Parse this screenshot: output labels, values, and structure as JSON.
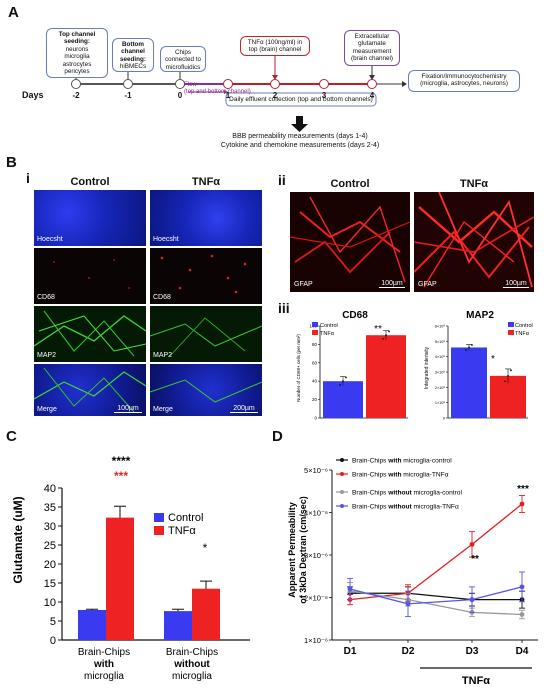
{
  "panel_a": {
    "letter": "A",
    "days_label": "Days",
    "day_ticks": [
      "-2",
      "-1",
      "0",
      "1",
      "2",
      "3",
      "4"
    ],
    "box_top_seeding": {
      "title": "Top channel seeding:",
      "lines": [
        "neurons",
        "microglia",
        "astrocytes",
        "pericytes"
      ]
    },
    "box_bottom_seeding": {
      "title": "Bottom channel seeding:",
      "lines": [
        "hiBMECs"
      ]
    },
    "box_chips": {
      "lines": [
        "Chips",
        "connected to",
        "microfluidics"
      ]
    },
    "box_tnf": {
      "lines": [
        "TNFα (100ng/ml) in",
        "top (brain) channel"
      ]
    },
    "box_glutamate": {
      "lines": [
        "Extracellular",
        "glutamate",
        "measurement",
        "(brain channel)"
      ]
    },
    "box_fixation": {
      "lines": [
        "Fixation/Immunocytochemistry",
        "(microglia, astrocytes, neurons)"
      ]
    },
    "flow_label": [
      "Flow",
      "(top and bottom channel)"
    ],
    "effluent_label": "Daily effluent collection (top and bottom channels)",
    "measurements": [
      "BBB permeability measurements (days 1-4)",
      "Cytokine and chemokine measurements (days 2-4)"
    ]
  },
  "panel_b": {
    "letter": "B",
    "sub_i": "i",
    "sub_ii": "ii",
    "sub_iii": "iii",
    "col_control": "Control",
    "col_tnf": "TNFα",
    "rows": [
      "Hoecsht",
      "CD68",
      "MAP2",
      "Merge"
    ],
    "scale_100": "100µm",
    "scale_200": "200µm",
    "gfap_label": "GFAP",
    "colors": {
      "hoechst": "#1a2ad8",
      "cd68": "#e02020",
      "map2": "#38d030",
      "gfap": "#f01818"
    }
  },
  "panel_biii_cd68": {
    "title": "CD68",
    "ylabel": "Number of CD68+ cells (per mm²)",
    "legend": [
      "Control",
      "TNFα"
    ],
    "significance": "**",
    "chart_data": {
      "type": "bar",
      "categories": [
        "Control",
        "TNFα"
      ],
      "values": [
        40,
        90
      ],
      "errors": [
        5,
        5
      ],
      "ylim": [
        0,
        100
      ],
      "colors": [
        "#3a3af0",
        "#ee2222"
      ],
      "yticks": [
        "0",
        "20",
        "40",
        "60",
        "80",
        "100"
      ]
    }
  },
  "panel_biii_map2": {
    "title": "MAP2",
    "ylabel": "Integrated intensity",
    "legend": [
      "Control",
      "TNFα"
    ],
    "significance": "*",
    "chart_data": {
      "type": "bar",
      "categories": [
        "Control",
        "TNFα"
      ],
      "values": [
        460000000.0,
        275000000.0
      ],
      "errors": [
        20000000.0,
        45000000.0
      ],
      "ylim": [
        0,
        600000000.0
      ],
      "colors": [
        "#3a3af0",
        "#ee2222"
      ],
      "yticks": [
        "0",
        "1×10⁸",
        "2×10⁸",
        "3×10⁸",
        "4×10⁸",
        "5×10⁸",
        "6×10⁸"
      ]
    }
  },
  "panel_c": {
    "letter": "C",
    "ylabel": "Glutamate (uM)",
    "legend": [
      "Control",
      "TNFα"
    ],
    "group1": [
      "Brain-Chips",
      "with",
      "microglia"
    ],
    "group2": [
      "Brain-Chips",
      "without",
      "microglia"
    ],
    "sig_black": "****",
    "sig_red": "***",
    "sig_small": "*",
    "chart_data": {
      "type": "bar",
      "categories": [
        "Brain-Chips with microglia",
        "Brain-Chips without microglia"
      ],
      "series": [
        {
          "name": "Control",
          "values": [
            7.9,
            7.6
          ],
          "errors": [
            0.2,
            0.5
          ]
        },
        {
          "name": "TNFα",
          "values": [
            32.2,
            13.5
          ],
          "errors": [
            3.0,
            2.0
          ]
        }
      ],
      "ylim": [
        0,
        40
      ],
      "yticks": [
        "0",
        "5",
        "10",
        "15",
        "20",
        "25",
        "30",
        "35",
        "40"
      ],
      "colors": [
        "#3a3af0",
        "#ee2222"
      ]
    }
  },
  "panel_d": {
    "letter": "D",
    "ylabel": [
      "Apparent Permeability",
      "of 3kDa Dextran (cm/sec)"
    ],
    "x_group_label": "TNFα",
    "sig_d3": "**",
    "sig_d4": "***",
    "legend": [
      {
        "prefix": "Brain-Chips ",
        "bold": "with",
        "suffix": " microglia-control"
      },
      {
        "prefix": "Brain-Chips ",
        "bold": "with",
        "suffix": " microglia-TNFα"
      },
      {
        "prefix": "Brain-Chips ",
        "bold": "without",
        "suffix": " microglia-control"
      },
      {
        "prefix": "Brain-Chips ",
        "bold": "without",
        "suffix": " microglia-TNFα"
      }
    ],
    "chart_data": {
      "type": "line",
      "x": [
        "D1",
        "D2",
        "D3",
        "D4"
      ],
      "yticks": [
        "1×10⁻⁶",
        "2×10⁻⁶",
        "3×10⁻⁶",
        "4×10⁻⁶",
        "5×10⁻⁶"
      ],
      "ylim": [
        1e-06,
        5e-06
      ],
      "series": [
        {
          "values": [
            2.1e-06,
            2.1e-06,
            1.95e-06,
            1.95e-06
          ],
          "errors": [
            1.5e-07,
            1.5e-07,
            1.5e-07,
            2e-07
          ],
          "color": "#111111"
        },
        {
          "values": [
            1.95e-06,
            2.1e-06,
            3.25e-06,
            4.2e-06
          ],
          "errors": [
            1.2e-07,
            2e-07,
            3e-07,
            2e-07
          ],
          "color": "#e02020"
        },
        {
          "values": [
            2.15e-06,
            1.95e-06,
            1.65e-06,
            1.6e-06
          ],
          "errors": [
            2e-07,
            1.5e-07,
            1e-07,
            1e-07
          ],
          "color": "#999999"
        },
        {
          "values": [
            2.2e-06,
            1.85e-06,
            1.95e-06,
            2.25e-06
          ],
          "errors": [
            2.5e-07,
            3e-07,
            3e-07,
            3.5e-07
          ],
          "color": "#5555ee"
        }
      ]
    }
  }
}
